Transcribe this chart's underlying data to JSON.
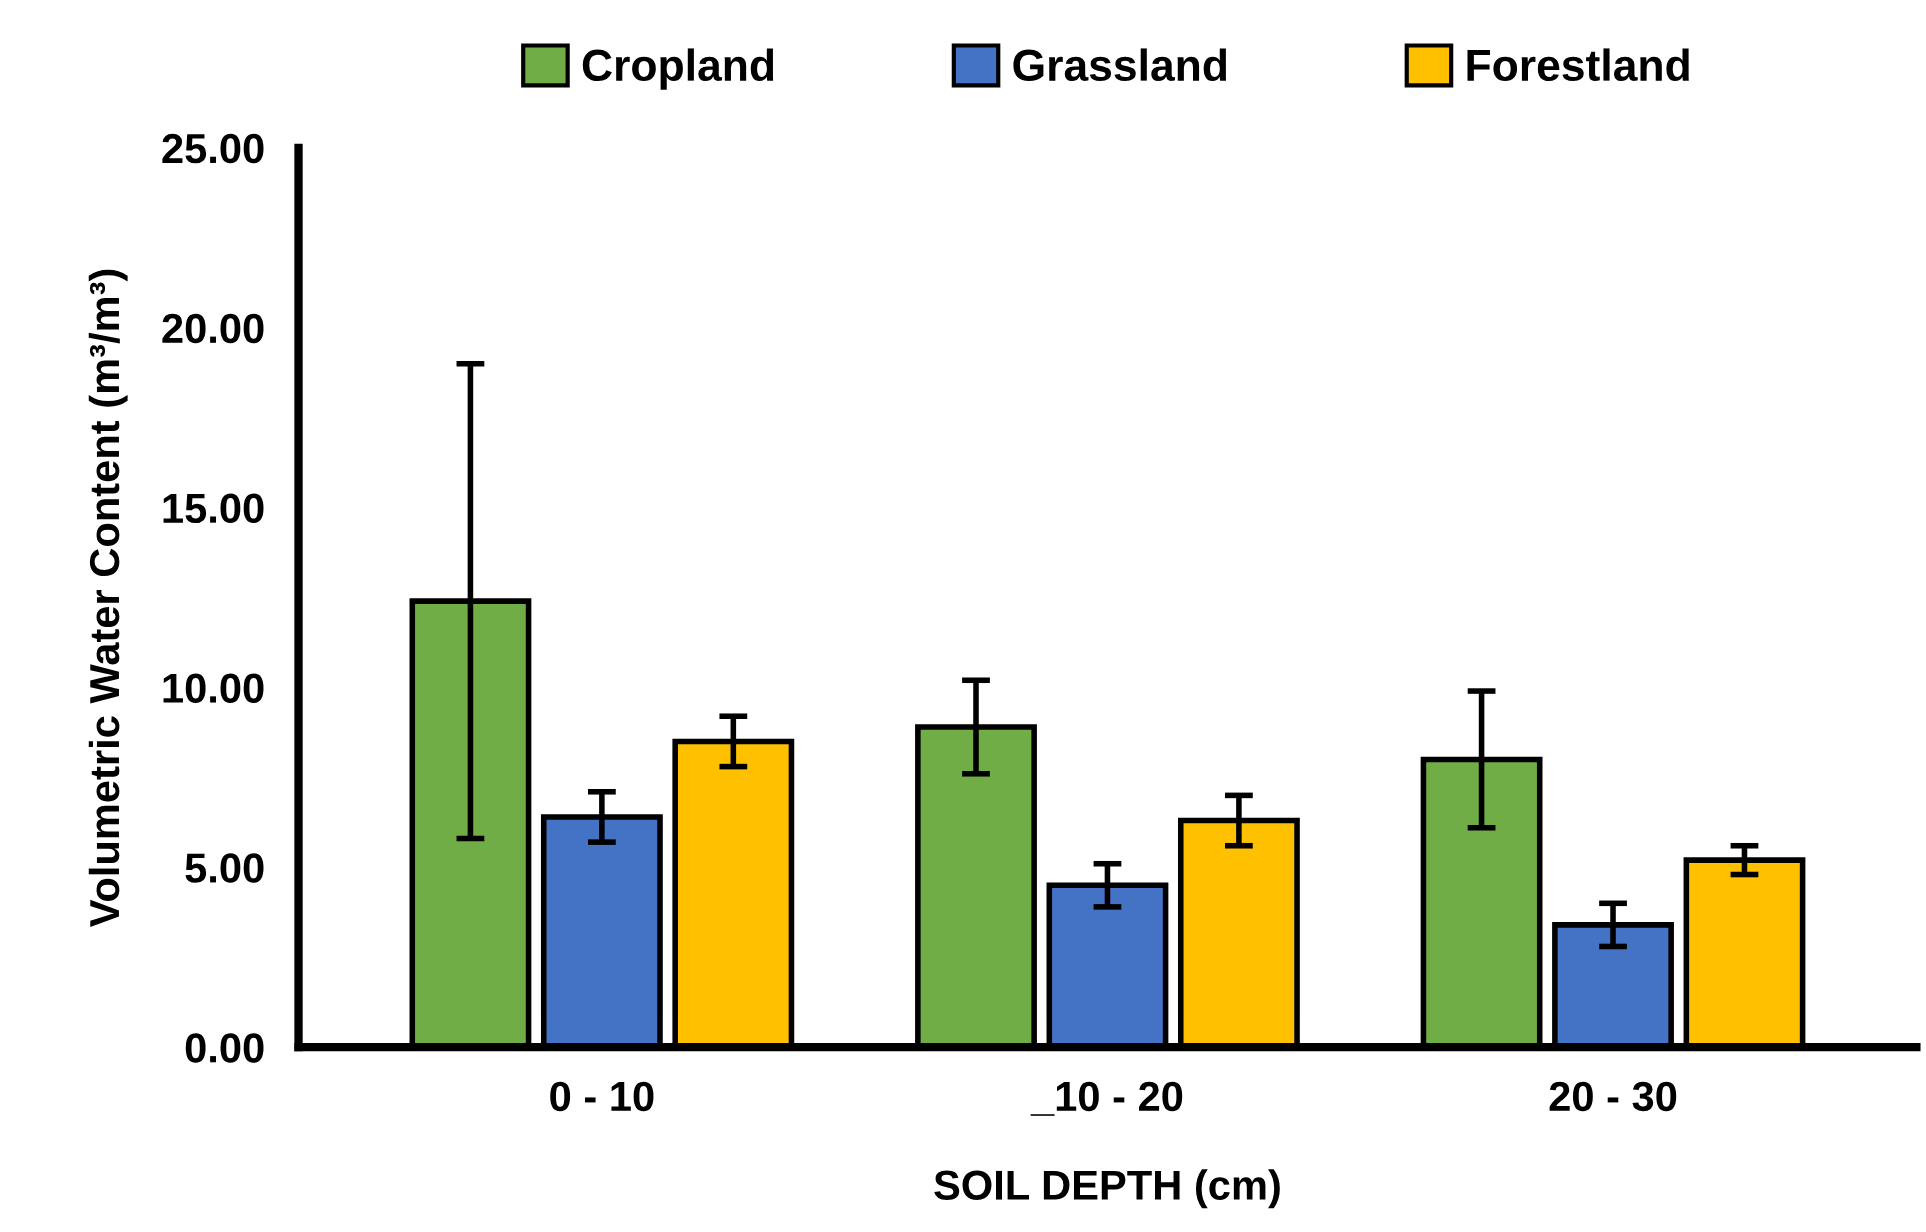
{
  "chart_data": {
    "type": "bar",
    "xlabel": "SOIL DEPTH (cm)",
    "ylabel": "Volumetric Water Content (m³/m³)",
    "categories": [
      "0 - 10",
      "_10 - 20",
      "20 - 30"
    ],
    "series": [
      {
        "name": "Cropland",
        "color": "#70ad47",
        "values": [
          12.4,
          8.9,
          8.0
        ],
        "errors": [
          6.6,
          1.3,
          1.9
        ]
      },
      {
        "name": "Grassland",
        "color": "#4472c4",
        "values": [
          6.4,
          4.5,
          3.4
        ],
        "errors": [
          0.7,
          0.6,
          0.6
        ]
      },
      {
        "name": "Forestland",
        "color": "#ffc000",
        "values": [
          8.5,
          6.3,
          5.2
        ],
        "errors": [
          0.7,
          0.7,
          0.4
        ]
      }
    ],
    "ylim": [
      0,
      25
    ],
    "yticks": [
      {
        "value": 0,
        "label": "0.00"
      },
      {
        "value": 5,
        "label": "5.00"
      },
      {
        "value": 10,
        "label": "10.00"
      },
      {
        "value": 15,
        "label": "15.00"
      },
      {
        "value": 20,
        "label": "20.00"
      },
      {
        "value": 25,
        "label": "25.00"
      }
    ],
    "grid": false,
    "legend": "top"
  }
}
